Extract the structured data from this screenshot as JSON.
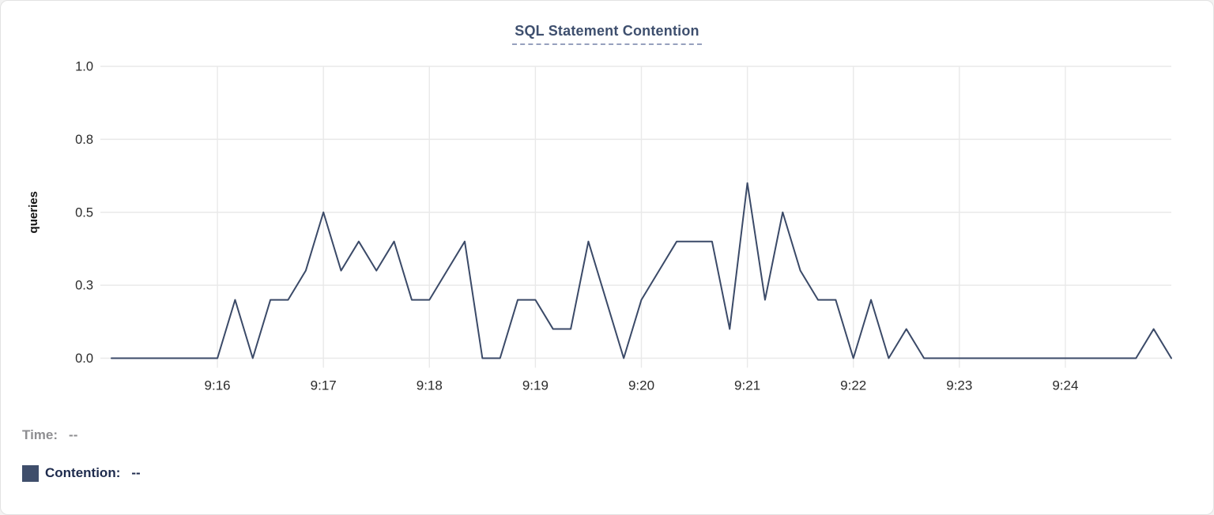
{
  "title": "SQL Statement Contention",
  "card": {
    "background": "#ffffff",
    "border_color": "#e2e2e2",
    "title_color": "#3e4f6e",
    "title_underline_color": "#96a0bd"
  },
  "legend": {
    "time_label": "Time:",
    "time_value": "--",
    "time_color": "#8e8e91",
    "contention_label": "Contention:",
    "contention_value": "--",
    "contention_color": "#1e2b4d",
    "swatch_color": "#3f4e6b"
  },
  "chart_data": {
    "type": "line",
    "title": "SQL Statement Contention",
    "xlabel": "",
    "ylabel": "queries",
    "ylim": [
      0,
      1
    ],
    "grid": true,
    "grid_color": "#e9e9e9",
    "tick_text_color": "#2b2b2b",
    "ylabel_color": "#111111",
    "y_ticks": [
      {
        "value": 0.0,
        "label": "0.0"
      },
      {
        "value": 0.25,
        "label": "0.3"
      },
      {
        "value": 0.5,
        "label": "0.5"
      },
      {
        "value": 0.75,
        "label": "0.8"
      },
      {
        "value": 1.0,
        "label": "1.0"
      }
    ],
    "x_ticks": [
      {
        "offset_seconds": 60,
        "label": "9:16"
      },
      {
        "offset_seconds": 120,
        "label": "9:17"
      },
      {
        "offset_seconds": 180,
        "label": "9:18"
      },
      {
        "offset_seconds": 240,
        "label": "9:19"
      },
      {
        "offset_seconds": 300,
        "label": "9:20"
      },
      {
        "offset_seconds": 360,
        "label": "9:21"
      },
      {
        "offset_seconds": 420,
        "label": "9:22"
      },
      {
        "offset_seconds": 480,
        "label": "9:23"
      },
      {
        "offset_seconds": 540,
        "label": "9:24"
      }
    ],
    "x_domain": {
      "start": "9:15:00",
      "end": "9:25:00",
      "total_seconds": 600
    },
    "sample_interval_seconds": 10,
    "series": [
      {
        "name": "Contention",
        "color": "#3b4a68",
        "start_time": "9:15:00",
        "values": [
          0,
          0,
          0,
          0,
          0,
          0,
          0,
          0.2,
          0,
          0.2,
          0.2,
          0.3,
          0.5,
          0.3,
          0.4,
          0.3,
          0.4,
          0.2,
          0.2,
          0.3,
          0.4,
          0,
          0,
          0.2,
          0.2,
          0.1,
          0.1,
          0.4,
          0.2,
          0,
          0.2,
          0.3,
          0.4,
          0.4,
          0.4,
          0.1,
          0.6,
          0.2,
          0.5,
          0.3,
          0.2,
          0.2,
          0,
          0.2,
          0,
          0.1,
          0,
          0,
          0,
          0,
          0,
          0,
          0,
          0,
          0,
          0,
          0,
          0,
          0,
          0.1,
          0
        ]
      }
    ]
  }
}
